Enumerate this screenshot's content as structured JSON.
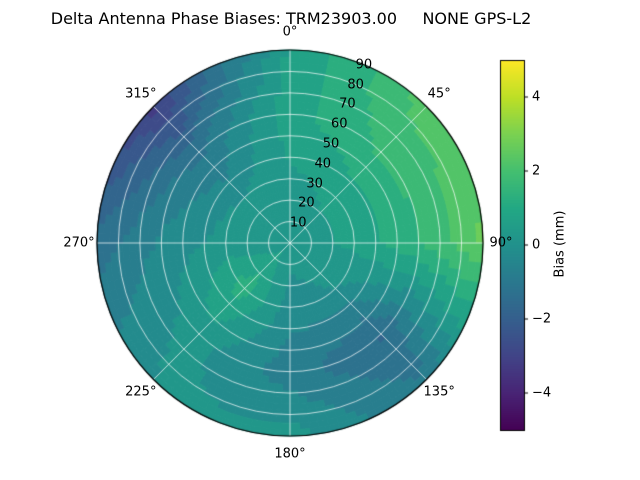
{
  "chart_data": {
    "type": "heatmap",
    "projection": "polar",
    "title": "Delta Antenna Phase Biases: TRM23903.00     NONE GPS-L2",
    "theta_labels": [
      "0°",
      "45°",
      "90°",
      "135°",
      "180°",
      "225°",
      "270°",
      "315°"
    ],
    "theta_direction": "clockwise",
    "theta_zero": "top",
    "radial_ticks": [
      10,
      20,
      30,
      40,
      50,
      60,
      70,
      80,
      90
    ],
    "radial_label_azimuth_deg": 22.5,
    "vmin": -5,
    "vmax": 5,
    "grid_color": "#ffffff",
    "outline_color": "#000000",
    "colorbar": {
      "label": "Bias (mm)",
      "ticks": [
        {
          "value": 4,
          "label": "4"
        },
        {
          "value": 2,
          "label": "2"
        },
        {
          "value": 0,
          "label": "0"
        },
        {
          "value": -2,
          "label": "−2"
        },
        {
          "value": -4,
          "label": "−4"
        }
      ]
    },
    "colormap": {
      "name": "viridis",
      "stops": [
        "#440154",
        "#482475",
        "#414487",
        "#355f8d",
        "#2a788e",
        "#21918c",
        "#22a884",
        "#44bf70",
        "#7ad151",
        "#bddf26",
        "#fde725"
      ]
    },
    "grid": {
      "azimuths_deg": [
        0,
        45,
        90,
        135,
        180,
        225,
        270,
        315
      ],
      "zeniths_deg": [
        0,
        30,
        60,
        90
      ],
      "bias_mm": [
        [
          0.3,
          0.4,
          0.8,
          0.6
        ],
        [
          0.3,
          0.6,
          1.6,
          2.2
        ],
        [
          0.3,
          0.6,
          1.5,
          2.6
        ],
        [
          0.3,
          0.0,
          -1.6,
          -1.0
        ],
        [
          0.3,
          -0.3,
          -0.8,
          0.2
        ],
        [
          0.3,
          1.3,
          0.2,
          0.0
        ],
        [
          0.3,
          0.2,
          -0.4,
          -1.3
        ],
        [
          0.3,
          0.0,
          -1.2,
          -3.2
        ]
      ]
    }
  }
}
